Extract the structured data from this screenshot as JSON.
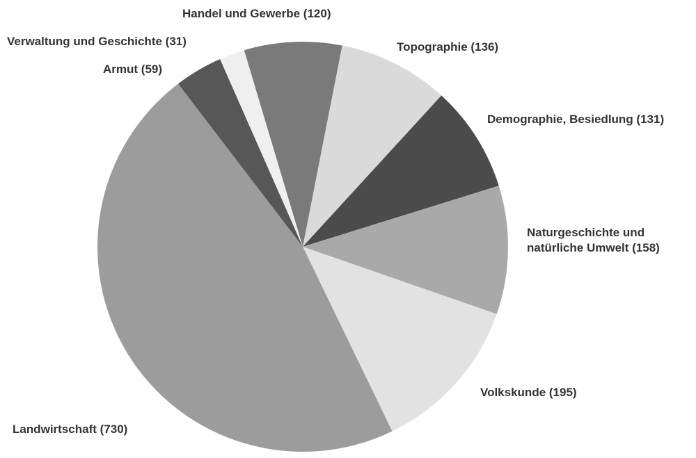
{
  "chart_data": {
    "type": "pie",
    "categories": [
      "Handel und Gewerbe (120)",
      "Topographie (136)",
      "Demographie, Besiedlung (131)",
      "Naturgeschichte und natürliche Umwelt (158)",
      "Volkskunde (195)",
      "Landwirtschaft (730)",
      "Armut (59)",
      "Verwaltung und Geschichte (31)"
    ],
    "values": [
      120,
      136,
      131,
      158,
      195,
      730,
      59,
      31
    ],
    "colors": [
      "#7a7a7a",
      "#dadada",
      "#4b4b4b",
      "#a9a9a9",
      "#e2e2e2",
      "#9c9c9c",
      "#575757",
      "#efefef"
    ]
  }
}
